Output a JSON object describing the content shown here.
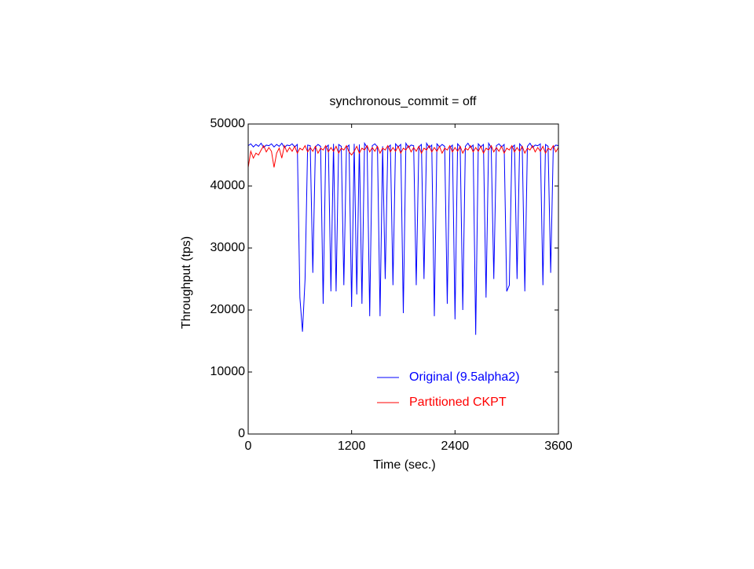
{
  "chart_data": {
    "type": "line",
    "title": "synchronous_commit = off",
    "x_label": "Time (sec.)",
    "y_label": "Throughput (tps)",
    "xlim": [
      0,
      3600
    ],
    "xticks": [
      0,
      1200,
      2400,
      3600
    ],
    "ylim": [
      0,
      50000
    ],
    "yticks": [
      0,
      10000,
      20000,
      30000,
      40000,
      50000
    ],
    "grid": false,
    "legend": "lower right",
    "x": [
      0,
      30,
      60,
      90,
      120,
      150,
      180,
      210,
      240,
      270,
      300,
      330,
      360,
      390,
      420,
      450,
      480,
      510,
      540,
      570,
      600,
      630,
      660,
      690,
      720,
      750,
      780,
      810,
      840,
      870,
      900,
      930,
      960,
      990,
      1020,
      1050,
      1080,
      1110,
      1140,
      1170,
      1200,
      1230,
      1260,
      1290,
      1320,
      1350,
      1380,
      1410,
      1440,
      1470,
      1500,
      1530,
      1560,
      1590,
      1620,
      1650,
      1680,
      1710,
      1740,
      1770,
      1800,
      1830,
      1860,
      1890,
      1920,
      1950,
      1980,
      2010,
      2040,
      2070,
      2100,
      2130,
      2160,
      2190,
      2220,
      2250,
      2280,
      2310,
      2340,
      2370,
      2400,
      2430,
      2460,
      2490,
      2520,
      2550,
      2580,
      2610,
      2640,
      2670,
      2700,
      2730,
      2760,
      2790,
      2820,
      2850,
      2880,
      2910,
      2940,
      2970,
      3000,
      3030,
      3060,
      3090,
      3120,
      3150,
      3180,
      3210,
      3240,
      3270,
      3300,
      3330,
      3360,
      3390,
      3420,
      3450,
      3480,
      3510,
      3540,
      3570,
      3600
    ],
    "series": [
      {
        "name": "Original (9.5alpha2)",
        "color": "#0000ff",
        "values": [
          46500,
          46800,
          46300,
          46700,
          46400,
          46900,
          46200,
          46600,
          46500,
          46800,
          46300,
          46700,
          46400,
          46900,
          46200,
          46600,
          46500,
          46800,
          46300,
          46700,
          22000,
          16500,
          25000,
          46600,
          46500,
          26000,
          46300,
          46700,
          46400,
          21000,
          46200,
          46600,
          23000,
          46800,
          23000,
          46700,
          46400,
          24000,
          46200,
          46600,
          20500,
          46800,
          22500,
          46700,
          21000,
          46900,
          46200,
          19000,
          46500,
          46800,
          46300,
          19000,
          46400,
          25000,
          46200,
          46600,
          24000,
          46800,
          46300,
          46700,
          19500,
          46900,
          46200,
          46600,
          46500,
          24000,
          46300,
          46700,
          25000,
          46900,
          46200,
          46600,
          19000,
          46800,
          46300,
          46700,
          46400,
          21000,
          46200,
          46600,
          18500,
          46800,
          46300,
          20000,
          46400,
          46900,
          46200,
          46600,
          16000,
          46800,
          46300,
          46700,
          22000,
          46900,
          46200,
          25000,
          46500,
          46800,
          46300,
          46700,
          23000,
          24000,
          46200,
          46600,
          25000,
          46800,
          46300,
          23000,
          46400,
          46900,
          46200,
          46600,
          46500,
          46800,
          24000,
          46700,
          46400,
          26000,
          46200,
          46600,
          46500
        ]
      },
      {
        "name": "Partitioned CKPT",
        "color": "#ff0000",
        "values": [
          43000,
          45600,
          44500,
          45300,
          45000,
          45800,
          46500,
          45500,
          46200,
          45600,
          43000,
          45300,
          46100,
          44500,
          46500,
          45500,
          46200,
          45600,
          46400,
          45300,
          46100,
          45800,
          46500,
          45500,
          46200,
          45600,
          46400,
          45300,
          46100,
          45800,
          46500,
          45500,
          46200,
          45600,
          46400,
          45300,
          46100,
          45800,
          46500,
          45500,
          45000,
          45600,
          46400,
          45300,
          46100,
          45800,
          46500,
          45500,
          46200,
          45600,
          46400,
          45300,
          46100,
          45800,
          46500,
          45500,
          46200,
          45600,
          46400,
          45300,
          46100,
          45800,
          46500,
          45500,
          46200,
          45600,
          46400,
          45300,
          46100,
          45800,
          46500,
          45500,
          46200,
          45600,
          46400,
          45300,
          46100,
          45800,
          46500,
          45500,
          46200,
          45600,
          46400,
          45300,
          46100,
          45800,
          46500,
          45500,
          46200,
          45600,
          46400,
          45300,
          46100,
          45800,
          46500,
          45500,
          46200,
          45600,
          46400,
          45300,
          46100,
          45800,
          46500,
          45500,
          46200,
          45600,
          46400,
          45300,
          46100,
          45800,
          46500,
          45500,
          46200,
          45600,
          46400,
          45300,
          46100,
          45800,
          46500,
          45500,
          46200
        ]
      }
    ]
  }
}
